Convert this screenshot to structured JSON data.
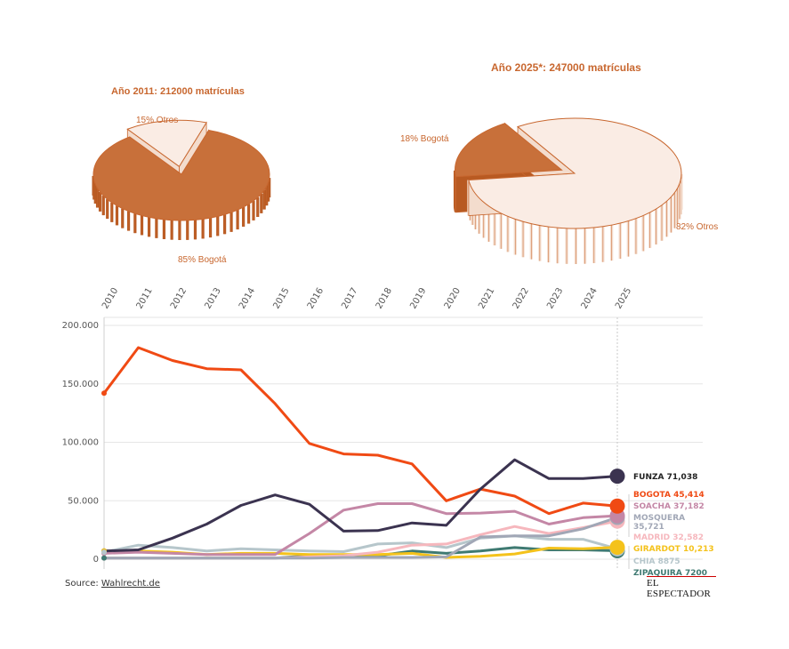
{
  "pies": [
    {
      "title": "Año 2011: 212000 matrículas",
      "slices": [
        {
          "label": "85% Bogotá",
          "value": 85,
          "color": "#c8703a"
        },
        {
          "label": "15% Otros",
          "value": 15,
          "color": "#faece4"
        }
      ]
    },
    {
      "title": "Año 2025*: 247000 matrículas",
      "slices": [
        {
          "label": "18% Bogotá",
          "value": 18,
          "color": "#c8703a"
        },
        {
          "label": "82% Otros",
          "value": 82,
          "color": "#faece4"
        }
      ]
    }
  ],
  "chart_data": {
    "type": "line",
    "x": [
      "2010",
      "2011",
      "2012",
      "2013",
      "2014",
      "2015",
      "2016",
      "2017",
      "2018",
      "2019",
      "2020",
      "2021",
      "2022",
      "2023",
      "2024",
      "2025"
    ],
    "ylim": [
      0,
      200000
    ],
    "yticks": [
      "0",
      "50.000",
      "100.000",
      "150.000",
      "200.000"
    ],
    "ytick_values": [
      0,
      50000,
      100000,
      150000,
      200000
    ],
    "grid": true,
    "series": [
      {
        "label": "FUNZA 71,038",
        "color": "#3b3350",
        "values": [
          7000,
          8000,
          18000,
          30000,
          46000,
          55000,
          47000,
          24000,
          24500,
          31000,
          29000,
          60000,
          85000,
          69000,
          69000,
          71038
        ]
      },
      {
        "label": "BOGOTA 45,414",
        "color": "#f04a14",
        "values": [
          142000,
          181000,
          170000,
          163000,
          162000,
          133000,
          99000,
          90000,
          89000,
          81500,
          50000,
          60000,
          54000,
          39000,
          48000,
          45414
        ]
      },
      {
        "label": "SOACHA 37,182",
        "color": "#c487a6",
        "values": [
          5000,
          6000,
          5000,
          4000,
          4000,
          4000,
          22000,
          42000,
          47500,
          47500,
          39000,
          39500,
          41000,
          30000,
          35500,
          37182
        ]
      },
      {
        "label": "MOSQUERA 35,721",
        "color": "#a1a7b6",
        "values": [
          1000,
          1000,
          1000,
          1000,
          1000,
          1000,
          1000,
          1500,
          1500,
          1500,
          2000,
          19000,
          20000,
          20000,
          26000,
          35721
        ]
      },
      {
        "label": "MADRID 32,582",
        "color": "#f6b7bd",
        "values": [
          1000,
          1000,
          1000,
          1000,
          1000,
          1000,
          2000,
          3000,
          6000,
          12000,
          13000,
          21000,
          28000,
          22000,
          27000,
          32582
        ]
      },
      {
        "label": "GIRARDOT 10,213",
        "color": "#f4c21b",
        "values": [
          7000,
          7000,
          6000,
          4000,
          5000,
          5000,
          4000,
          4000,
          4000,
          5000,
          1500,
          2500,
          4500,
          9500,
          9000,
          10213
        ]
      },
      {
        "label": "CHIA 8875",
        "color": "#b6c6cb",
        "values": [
          6000,
          12000,
          10000,
          7000,
          9000,
          8000,
          7000,
          6500,
          13000,
          14000,
          10000,
          18000,
          20000,
          17000,
          17000,
          8875
        ]
      },
      {
        "label": "ZIPAQUIRA 7200",
        "color": "#3f7a72",
        "values": [
          1000,
          1000,
          1000,
          1000,
          1000,
          1000,
          3000,
          3000,
          3000,
          7000,
          5000,
          7000,
          10000,
          8000,
          8000,
          7200
        ]
      }
    ]
  },
  "footer": {
    "source_prefix": "Source: ",
    "source_link": "Wahlrecht.de",
    "brand": "EL ESPECTADOR"
  }
}
